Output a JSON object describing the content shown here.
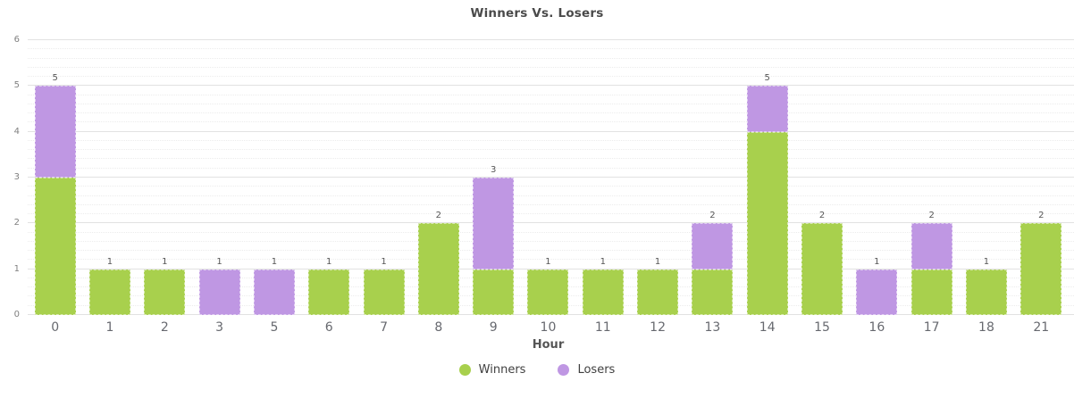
{
  "page": {
    "background": "#ffffff"
  },
  "chart_data": {
    "type": "bar",
    "stacked": true,
    "title": "Winners Vs. Losers",
    "xlabel": "Hour",
    "ylabel": "",
    "ylim": [
      0,
      6
    ],
    "y_major_step": 1,
    "y_minor_step": 0.2,
    "grid": "on",
    "categories": [
      "0",
      "1",
      "2",
      "3",
      "5",
      "6",
      "7",
      "8",
      "9",
      "10",
      "11",
      "12",
      "13",
      "14",
      "15",
      "16",
      "17",
      "18",
      "21"
    ],
    "series": [
      {
        "name": "Winners",
        "color": "#a8d04d",
        "values": [
          3,
          1,
          1,
          0,
          0,
          1,
          1,
          2,
          1,
          1,
          1,
          1,
          1,
          4,
          2,
          0,
          1,
          1,
          2
        ]
      },
      {
        "name": "Losers",
        "color": "#bf97e3",
        "values": [
          2,
          0,
          0,
          1,
          1,
          0,
          0,
          0,
          2,
          0,
          0,
          0,
          1,
          1,
          0,
          1,
          1,
          0,
          0
        ]
      }
    ],
    "bar_total_labels": [
      5,
      1,
      1,
      1,
      1,
      1,
      1,
      2,
      3,
      1,
      1,
      1,
      2,
      5,
      2,
      1,
      2,
      1,
      2
    ],
    "legend": {
      "position": "bottom"
    },
    "colors": {
      "title_text": "#4a4a4a",
      "axis_tick_text": "#67696f",
      "y_tick_text": "#808080",
      "value_label_text": "#555555",
      "gridline_major": "#e2e2e2",
      "gridline_minor": "#ececec"
    }
  }
}
